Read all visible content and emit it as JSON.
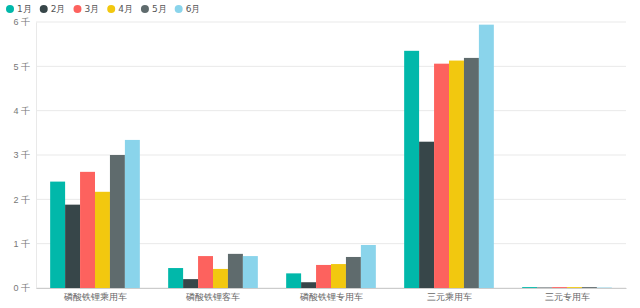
{
  "chart_data": {
    "type": "bar",
    "categories": [
      "磷酸铁锂乘用车",
      "磷酸铁锂客车",
      "磷酸铁锂专用车",
      "三元乘用车",
      "三元专用车"
    ],
    "series": [
      {
        "name": "1月",
        "color": "#01B8AA",
        "values": [
          2.4,
          0.45,
          0.33,
          5.35,
          0.02
        ]
      },
      {
        "name": "2月",
        "color": "#374649",
        "values": [
          1.88,
          0.2,
          0.13,
          3.3,
          0.01
        ]
      },
      {
        "name": "3月",
        "color": "#FD625E",
        "values": [
          2.62,
          0.72,
          0.52,
          5.06,
          0.02
        ]
      },
      {
        "name": "4月",
        "color": "#F2C80F",
        "values": [
          2.17,
          0.43,
          0.54,
          5.13,
          0.02
        ]
      },
      {
        "name": "5月",
        "color": "#5F6B6D",
        "values": [
          3.0,
          0.77,
          0.7,
          5.19,
          0.02
        ]
      },
      {
        "name": "6月",
        "color": "#8AD4EB",
        "values": [
          3.34,
          0.72,
          0.97,
          5.94,
          0.01
        ]
      }
    ],
    "ylim": [
      0,
      6
    ],
    "yticks": [
      {
        "value": 0,
        "label": "0 千"
      },
      {
        "value": 1,
        "label": "1 千"
      },
      {
        "value": 2,
        "label": "2 千"
      },
      {
        "value": 3,
        "label": "3 千"
      },
      {
        "value": 4,
        "label": "4 千"
      },
      {
        "value": 5,
        "label": "5 千"
      },
      {
        "value": 6,
        "label": "6 千"
      }
    ],
    "grid": true,
    "legend": "top-left"
  }
}
